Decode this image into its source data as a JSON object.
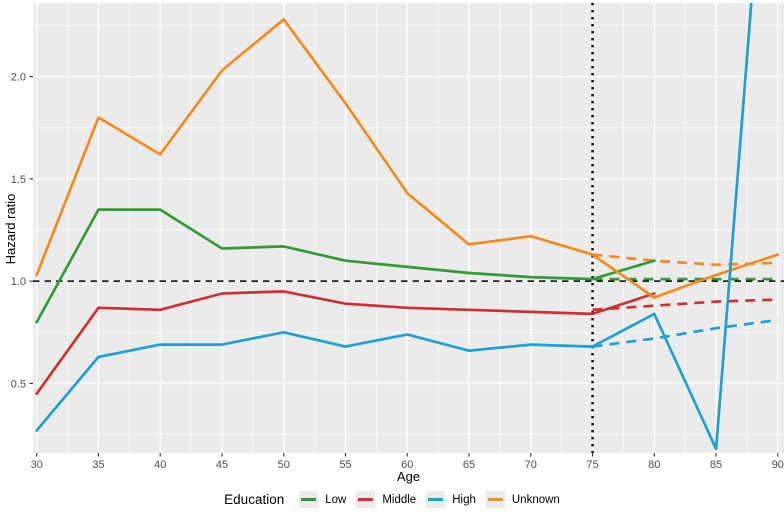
{
  "chart_data": {
    "type": "line",
    "title": "",
    "xlabel": "Age",
    "ylabel": "Hazard ratio",
    "legend_title": "Education",
    "legend_position": "bottom",
    "x_ticks": [
      30,
      35,
      40,
      45,
      50,
      55,
      60,
      65,
      70,
      75,
      80,
      85,
      90
    ],
    "y_ticks": [
      0.5,
      1.0,
      1.5,
      2.0
    ],
    "y_tick_labels": [
      "0.5",
      "1.0",
      "1.5",
      "2.0"
    ],
    "xlim": [
      29.7,
      90.5
    ],
    "ylim": [
      0.16,
      2.36
    ],
    "grid": "major and minor white gridlines on gray panel",
    "panel_bg": "#ebebeb",
    "grid_color": "#ffffff",
    "tick_text_color": "#4d4d4d",
    "ages": [
      30,
      35,
      40,
      45,
      50,
      55,
      60,
      65,
      70,
      75,
      80,
      85,
      90
    ],
    "series": [
      {
        "name": "Low",
        "color": "#2f9e32",
        "solid_values": [
          0.8,
          1.35,
          1.35,
          1.16,
          1.17,
          1.1,
          1.07,
          1.04,
          1.02,
          1.01,
          1.1,
          null,
          null
        ],
        "dashed_ages": [
          75,
          80,
          85,
          90
        ],
        "dashed_values": [
          1.01,
          1.01,
          1.01,
          1.01
        ]
      },
      {
        "name": "Middle",
        "color": "#ce312f",
        "solid_values": [
          0.45,
          0.87,
          0.86,
          0.94,
          0.95,
          0.89,
          0.87,
          0.86,
          0.85,
          0.84,
          0.94,
          null,
          null
        ],
        "dashed_ages": [
          75,
          80,
          85,
          90
        ],
        "dashed_values": [
          0.86,
          0.88,
          0.9,
          0.91
        ]
      },
      {
        "name": "High",
        "color": "#1ba1d5",
        "solid_values": [
          0.27,
          0.63,
          0.69,
          0.69,
          0.75,
          0.68,
          0.74,
          0.66,
          0.69,
          0.68,
          0.84,
          0.18,
          4.0
        ],
        "dashed_ages": [
          75,
          80,
          85,
          90
        ],
        "dashed_values": [
          0.68,
          0.72,
          0.77,
          0.81
        ],
        "note": "solid line at age 90 rises off the top of the chart (clipped)"
      },
      {
        "name": "Unknown",
        "color": "#f18c1a",
        "solid_values": [
          1.03,
          1.8,
          1.62,
          2.03,
          2.28,
          1.87,
          1.43,
          1.18,
          1.22,
          1.13,
          0.92,
          1.03,
          1.13
        ],
        "dashed_ages": [
          75,
          80,
          85,
          90
        ],
        "dashed_values": [
          1.13,
          1.1,
          1.08,
          1.09
        ]
      }
    ],
    "reference_lines": {
      "horizontal_dashed_at": 1.0,
      "vertical_dotted_at": 75
    }
  }
}
